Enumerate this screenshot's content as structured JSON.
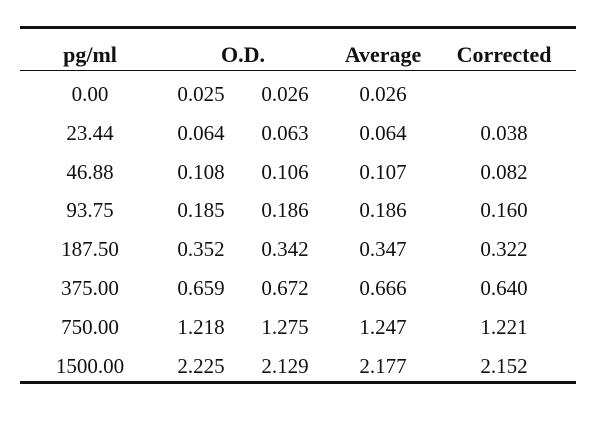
{
  "headers": [
    "pg/ml",
    "O.D.",
    "Average",
    "Corrected"
  ],
  "rows": [
    {
      "pg_ml": "0.00",
      "od1": "0.025",
      "od2": "0.026",
      "average": "0.026",
      "corrected": ""
    },
    {
      "pg_ml": "23.44",
      "od1": "0.064",
      "od2": "0.063",
      "average": "0.064",
      "corrected": "0.038"
    },
    {
      "pg_ml": "46.88",
      "od1": "0.108",
      "od2": "0.106",
      "average": "0.107",
      "corrected": "0.082"
    },
    {
      "pg_ml": "93.75",
      "od1": "0.185",
      "od2": "0.186",
      "average": "0.186",
      "corrected": "0.160"
    },
    {
      "pg_ml": "187.50",
      "od1": "0.352",
      "od2": "0.342",
      "average": "0.347",
      "corrected": "0.322"
    },
    {
      "pg_ml": "375.00",
      "od1": "0.659",
      "od2": "0.672",
      "average": "0.666",
      "corrected": "0.640"
    },
    {
      "pg_ml": "750.00",
      "od1": "1.218",
      "od2": "1.275",
      "average": "1.247",
      "corrected": "1.221"
    },
    {
      "pg_ml": "1500.00",
      "od1": "2.225",
      "od2": "2.129",
      "average": "2.177",
      "corrected": "2.152"
    }
  ]
}
